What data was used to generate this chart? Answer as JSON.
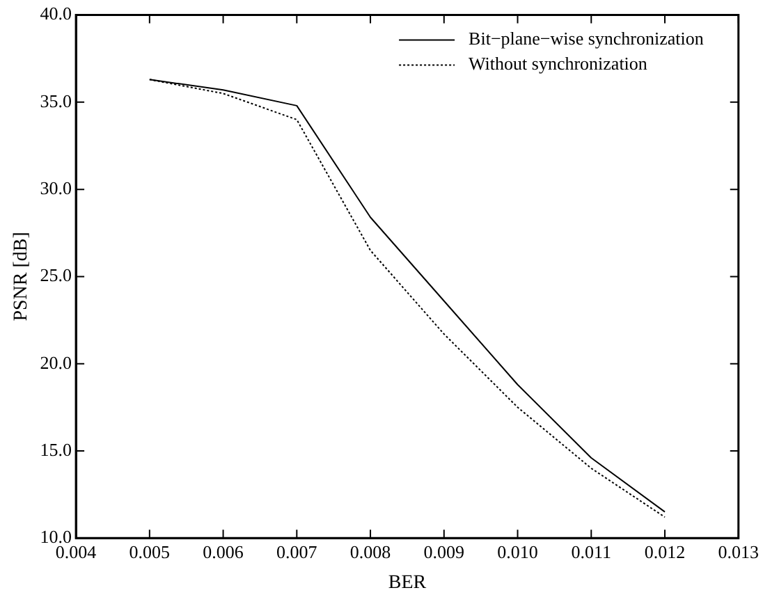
{
  "chart_data": {
    "type": "line",
    "xlabel": "BER",
    "ylabel": "PSNR [dB]",
    "x": [
      0.005,
      0.006,
      0.007,
      0.008,
      0.009,
      0.01,
      0.011,
      0.012
    ],
    "series": [
      {
        "name": "Bit−plane−wise synchronization",
        "color": "#000000",
        "line_style": "solid",
        "values": [
          36.3,
          35.7,
          34.8,
          28.4,
          23.6,
          18.8,
          14.6,
          11.5
        ]
      },
      {
        "name": "Without synchronization",
        "color": "#000000",
        "line_style": "dotted",
        "values": [
          36.3,
          35.5,
          34.0,
          26.5,
          21.7,
          17.5,
          14.0,
          11.2
        ]
      }
    ],
    "xlim": [
      0.004,
      0.013
    ],
    "ylim": [
      10,
      40
    ],
    "xticks": [
      {
        "value": 0.004,
        "label": "0.004"
      },
      {
        "value": 0.005,
        "label": "0.005"
      },
      {
        "value": 0.006,
        "label": "0.006"
      },
      {
        "value": 0.007,
        "label": "0.007"
      },
      {
        "value": 0.008,
        "label": "0.008"
      },
      {
        "value": 0.009,
        "label": "0.009"
      },
      {
        "value": 0.01,
        "label": "0.010"
      },
      {
        "value": 0.011,
        "label": "0.011"
      },
      {
        "value": 0.012,
        "label": "0.012"
      },
      {
        "value": 0.013,
        "label": "0.013"
      }
    ],
    "yticks": [
      {
        "value": 10,
        "label": "10.0"
      },
      {
        "value": 15,
        "label": "15.0"
      },
      {
        "value": 20,
        "label": "20.0"
      },
      {
        "value": 25,
        "label": "25.0"
      },
      {
        "value": 30,
        "label": "30.0"
      },
      {
        "value": 35,
        "label": "35.0"
      },
      {
        "value": 40,
        "label": "40.0"
      }
    ],
    "grid": false,
    "legend": "top right",
    "marker": "none"
  }
}
